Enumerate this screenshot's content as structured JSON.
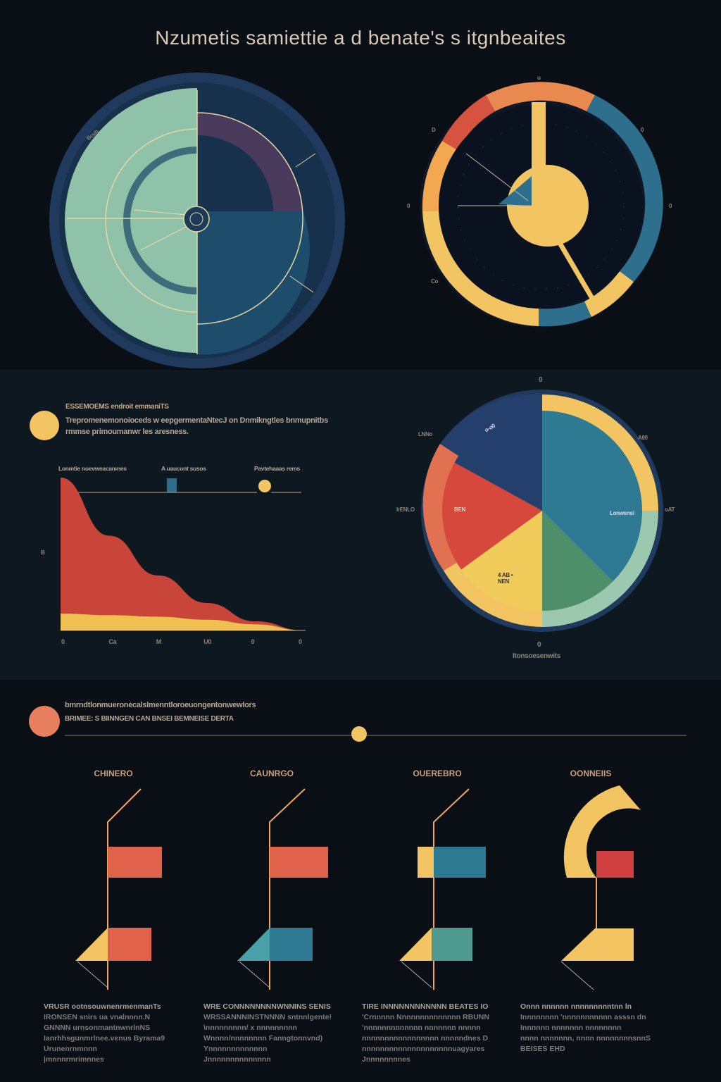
{
  "title": "Nzumetis samiettie a d benate's s itgnbeaites",
  "top_left_dial": {
    "labels": [
      "Bcub",
      "0",
      "0"
    ]
  },
  "top_right_dial": {
    "labels": [
      "u",
      "D",
      "0",
      "0",
      "0",
      "Co"
    ]
  },
  "section1": {
    "heading": "ESSEMOEMS endroit emmaniTS",
    "body_line1": "Trepromenemonoioceds w eepgermentaNtecJ on Dnmikngtles bnmupnitbs",
    "body_line2": "rmmse primoumanwr les aresness.",
    "legend": [
      "Lonmtie noevweacanmes",
      "A uaucont susos",
      "Pavtehaaas rems"
    ],
    "colors": {
      "bullet": "#f2c462"
    }
  },
  "section2": {
    "heading": "bmrndtlonmueronecalslmenntloroeuongentonwewlors",
    "subheading": "BRIMEE: S BIINNGEN CAN BNSEI BEMNEISE DERTA"
  },
  "chart_data": [
    {
      "type": "area",
      "title": "",
      "ylabel": "B",
      "x_tick_labels": [
        "0",
        "Ca",
        "M",
        "U0",
        "0",
        "0"
      ],
      "series": [
        {
          "color": "#c9453a",
          "values": [
            1.0,
            0.62,
            0.36,
            0.18,
            0.06,
            0.0
          ]
        },
        {
          "color": "#f0c050",
          "values": [
            0.11,
            0.1,
            0.09,
            0.07,
            0.04,
            0.0
          ]
        }
      ]
    },
    {
      "type": "pie",
      "top_label": "0",
      "bottom_label": "0",
      "footer_label": "Itonsoesenwits",
      "slice_labels": [
        "BEN",
        "4 AB • NEN"
      ],
      "side_labels": [
        "LNNo",
        "IrENLO",
        "A80",
        "oAT",
        "Lonwsnsi",
        "o-o0"
      ],
      "slices": [
        {
          "color": "#2e7a92",
          "value": 0.375
        },
        {
          "color": "#4e8f6a",
          "value": 0.125
        },
        {
          "color": "#f2cc5a",
          "value": 0.15
        },
        {
          "color": "#d5483b",
          "value": 0.18
        },
        {
          "color": "#243f6b",
          "value": 0.17
        }
      ]
    }
  ],
  "panels": [
    {
      "title": "CHINERO",
      "lines": [
        "VRUSR ootnsouwnenrmenmanTs",
        "IRONSEN snirs ua  vnalnnnn.N",
        "GNNNN  urnsonmantnwnrlnNS",
        "Ianrhhsgunmrlnee.venus Byrama9",
        "Urunenrnmnnn",
        "|mnnnrmrimnnes"
      ]
    },
    {
      "title": "CAUNRGO",
      "lines": [
        "WRE  CONNNNNNNNWNNINS SENIS",
        "WRSSANNNINSTNNNN  sntnnlgente!",
        "\\nnnnnnnnn/  x  nnnnnnnnn",
        "Wnnnn/nnnnnnnn Fanngtonnvnd)",
        "Ynnnnnnnnnnnnn",
        "Jnnnnnnnnnnnnnn"
      ]
    },
    {
      "title": "OUEREBRO",
      "lines": [
        "TIRE INNNNNNNNNNNN BEATES IO",
        "'Crnnnnn  Nnnnnnnnnnnnnn  RBUNN",
        "'nnnnnnnnnnnnn  nnnnnnn  nnnnn",
        "nnnnnnnnnnnnnnnnn  nnnnndnes D",
        "nnnnnnnnnnnnnnnnnnnnuagyares",
        "Jnnnnnnnnes"
      ]
    },
    {
      "title": "OONNEIIS",
      "lines": [
        "Onnn nnnnnn  nnnnnnnnntnn ln",
        "Innnnnnnn  'nnnnnnnnnnn asssn dn",
        "Innnnnn  nnnnnnn  nnnnnnnn",
        "nnnn nnnnnnn, nnnn  nnnnnnnnsnnS",
        "BEISES EHD"
      ]
    }
  ],
  "colors": {
    "background": "#0a0e15",
    "band": "#0e1821",
    "teal": "#8fc2a8",
    "navy": "#1f3a5c",
    "yellow": "#f2c462",
    "orange": "#e8894f",
    "red": "#d6533f",
    "blue": "#2e7a92"
  }
}
